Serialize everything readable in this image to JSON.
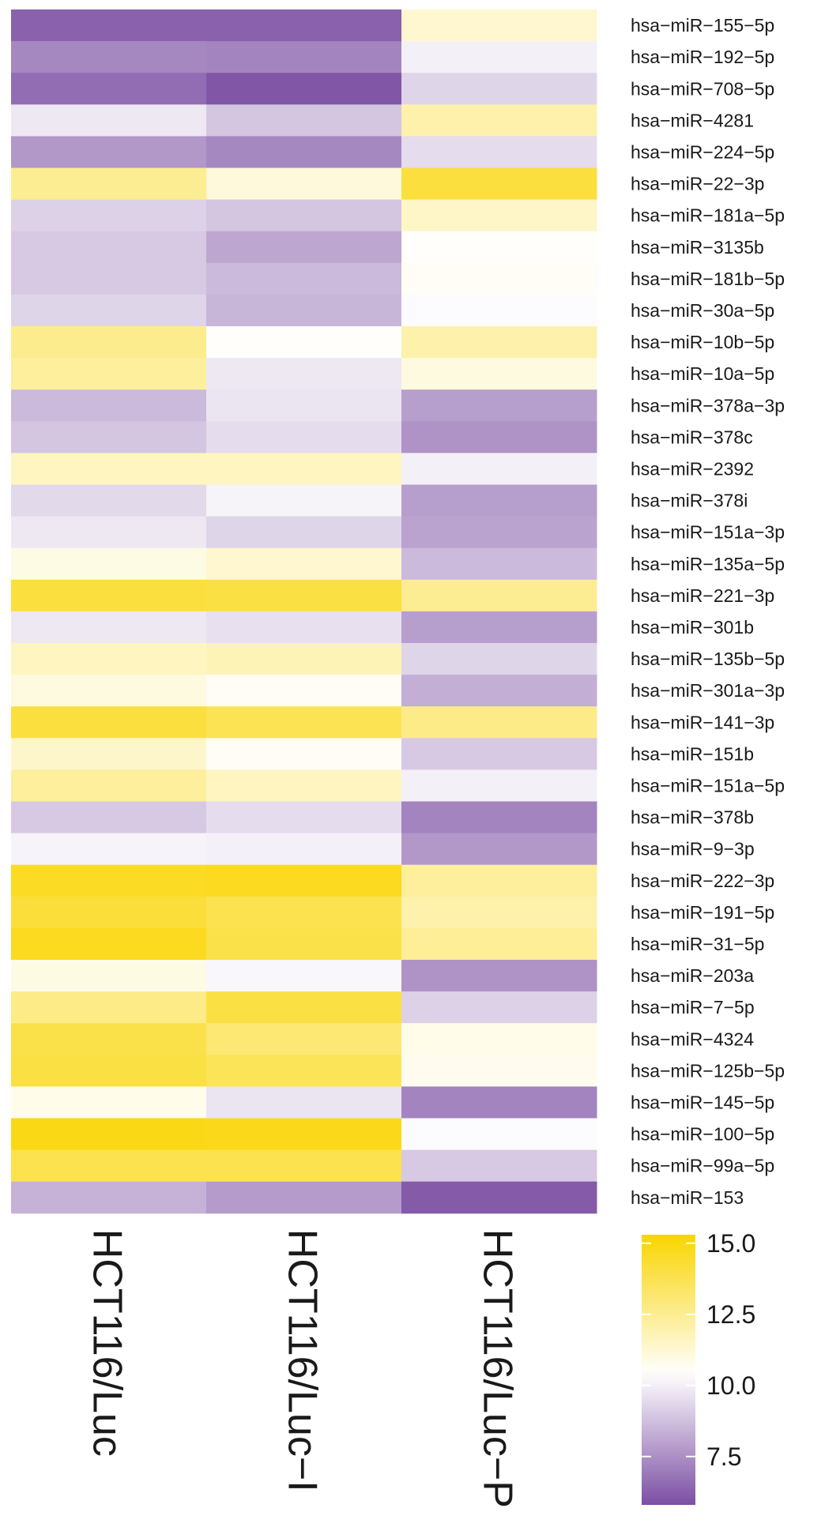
{
  "chart_data": {
    "type": "heatmap",
    "columns": [
      "HCT116/Luc",
      "HCT116/Luc−I",
      "HCT116/Luc−P"
    ],
    "rows": [
      "hsa−miR−155−5p",
      "hsa−miR−192−5p",
      "hsa−miR−708−5p",
      "hsa−miR−4281",
      "hsa−miR−224−5p",
      "hsa−miR−22−3p",
      "hsa−miR−181a−5p",
      "hsa−miR−3135b",
      "hsa−miR−181b−5p",
      "hsa−miR−30a−5p",
      "hsa−miR−10b−5p",
      "hsa−miR−10a−5p",
      "hsa−miR−378a−3p",
      "hsa−miR−378c",
      "hsa−miR−2392",
      "hsa−miR−378i",
      "hsa−miR−151a−3p",
      "hsa−miR−135a−5p",
      "hsa−miR−221−3p",
      "hsa−miR−301b",
      "hsa−miR−135b−5p",
      "hsa−miR−301a−3p",
      "hsa−miR−141−3p",
      "hsa−miR−151b",
      "hsa−miR−151a−5p",
      "hsa−miR−378b",
      "hsa−miR−9−3p",
      "hsa−miR−222−3p",
      "hsa−miR−191−5p",
      "hsa−miR−31−5p",
      "hsa−miR−203a",
      "hsa−miR−7−5p",
      "hsa−miR−4324",
      "hsa−miR−125b−5p",
      "hsa−miR−145−5p",
      "hsa−miR−100−5p",
      "hsa−miR−99a−5p",
      "hsa−miR−153"
    ],
    "values": [
      [
        6.3,
        6.3,
        11.3
      ],
      [
        7.3,
        7.2,
        10.0
      ],
      [
        6.6,
        6.0,
        9.3
      ],
      [
        9.8,
        8.9,
        12.0
      ],
      [
        7.7,
        7.3,
        9.5
      ],
      [
        12.5,
        11.1,
        14.1
      ],
      [
        9.2,
        8.9,
        11.5
      ],
      [
        9.0,
        8.1,
        10.5
      ],
      [
        9.0,
        8.6,
        10.6
      ],
      [
        9.3,
        8.5,
        10.3
      ],
      [
        12.6,
        10.5,
        12.0
      ],
      [
        12.3,
        9.8,
        11.0
      ],
      [
        8.6,
        9.7,
        7.9
      ],
      [
        8.9,
        9.5,
        7.6
      ],
      [
        11.6,
        11.6,
        10.0
      ],
      [
        9.4,
        10.1,
        7.9
      ],
      [
        9.8,
        9.3,
        8.0
      ],
      [
        10.9,
        11.3,
        8.6
      ],
      [
        14.1,
        14.0,
        12.5
      ],
      [
        9.8,
        9.6,
        7.9
      ],
      [
        11.6,
        11.8,
        9.3
      ],
      [
        11.0,
        10.6,
        8.3
      ],
      [
        14.1,
        13.7,
        12.7
      ],
      [
        11.4,
        10.6,
        9.0
      ],
      [
        12.3,
        11.6,
        10.0
      ],
      [
        9.0,
        9.5,
        7.2
      ],
      [
        10.1,
        10.0,
        7.7
      ],
      [
        14.6,
        14.7,
        12.3
      ],
      [
        14.2,
        13.8,
        12.0
      ],
      [
        14.7,
        13.9,
        12.4
      ],
      [
        10.9,
        10.2,
        7.6
      ],
      [
        12.7,
        14.0,
        9.2
      ],
      [
        13.9,
        13.1,
        10.8
      ],
      [
        14.0,
        13.6,
        10.7
      ],
      [
        10.8,
        9.7,
        7.2
      ],
      [
        14.9,
        14.8,
        10.3
      ],
      [
        13.8,
        13.8,
        9.0
      ],
      [
        8.4,
        7.8,
        6.1
      ]
    ],
    "colorbar": {
      "range": [
        5.8,
        15.3
      ],
      "ticks": [
        "15.0",
        "12.5",
        "10.0",
        "7.5"
      ],
      "low_color": "#7b4ea3",
      "mid_color": "#ffffff",
      "high_color": "#fad500",
      "mid_value": 10.4
    }
  }
}
